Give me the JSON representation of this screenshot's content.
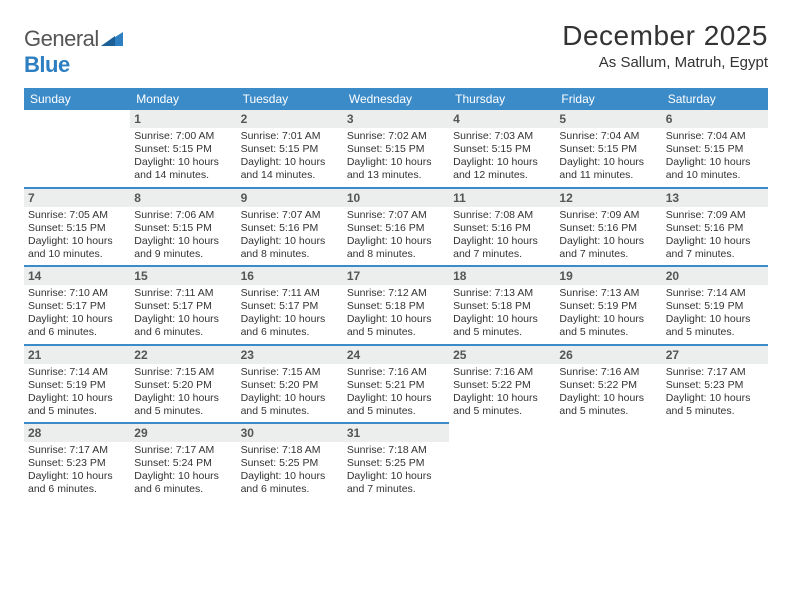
{
  "brand": {
    "part1": "General",
    "part2": "Blue"
  },
  "title": "December 2025",
  "location": "As Sallum, Matruh, Egypt",
  "colors": {
    "header_bg": "#3b8bc9",
    "header_text": "#ffffff",
    "daynum_bg": "#eceded",
    "rule": "#3b8bc9",
    "logo_gray": "#555555",
    "logo_blue": "#2d7fc1",
    "text": "#333333"
  },
  "weekdays": [
    "Sunday",
    "Monday",
    "Tuesday",
    "Wednesday",
    "Thursday",
    "Friday",
    "Saturday"
  ],
  "weeks": [
    [
      null,
      {
        "n": "1",
        "sr": "7:00 AM",
        "ss": "5:15 PM",
        "dl": "10 hours and 14 minutes."
      },
      {
        "n": "2",
        "sr": "7:01 AM",
        "ss": "5:15 PM",
        "dl": "10 hours and 14 minutes."
      },
      {
        "n": "3",
        "sr": "7:02 AM",
        "ss": "5:15 PM",
        "dl": "10 hours and 13 minutes."
      },
      {
        "n": "4",
        "sr": "7:03 AM",
        "ss": "5:15 PM",
        "dl": "10 hours and 12 minutes."
      },
      {
        "n": "5",
        "sr": "7:04 AM",
        "ss": "5:15 PM",
        "dl": "10 hours and 11 minutes."
      },
      {
        "n": "6",
        "sr": "7:04 AM",
        "ss": "5:15 PM",
        "dl": "10 hours and 10 minutes."
      }
    ],
    [
      {
        "n": "7",
        "sr": "7:05 AM",
        "ss": "5:15 PM",
        "dl": "10 hours and 10 minutes."
      },
      {
        "n": "8",
        "sr": "7:06 AM",
        "ss": "5:15 PM",
        "dl": "10 hours and 9 minutes."
      },
      {
        "n": "9",
        "sr": "7:07 AM",
        "ss": "5:16 PM",
        "dl": "10 hours and 8 minutes."
      },
      {
        "n": "10",
        "sr": "7:07 AM",
        "ss": "5:16 PM",
        "dl": "10 hours and 8 minutes."
      },
      {
        "n": "11",
        "sr": "7:08 AM",
        "ss": "5:16 PM",
        "dl": "10 hours and 7 minutes."
      },
      {
        "n": "12",
        "sr": "7:09 AM",
        "ss": "5:16 PM",
        "dl": "10 hours and 7 minutes."
      },
      {
        "n": "13",
        "sr": "7:09 AM",
        "ss": "5:16 PM",
        "dl": "10 hours and 7 minutes."
      }
    ],
    [
      {
        "n": "14",
        "sr": "7:10 AM",
        "ss": "5:17 PM",
        "dl": "10 hours and 6 minutes."
      },
      {
        "n": "15",
        "sr": "7:11 AM",
        "ss": "5:17 PM",
        "dl": "10 hours and 6 minutes."
      },
      {
        "n": "16",
        "sr": "7:11 AM",
        "ss": "5:17 PM",
        "dl": "10 hours and 6 minutes."
      },
      {
        "n": "17",
        "sr": "7:12 AM",
        "ss": "5:18 PM",
        "dl": "10 hours and 5 minutes."
      },
      {
        "n": "18",
        "sr": "7:13 AM",
        "ss": "5:18 PM",
        "dl": "10 hours and 5 minutes."
      },
      {
        "n": "19",
        "sr": "7:13 AM",
        "ss": "5:19 PM",
        "dl": "10 hours and 5 minutes."
      },
      {
        "n": "20",
        "sr": "7:14 AM",
        "ss": "5:19 PM",
        "dl": "10 hours and 5 minutes."
      }
    ],
    [
      {
        "n": "21",
        "sr": "7:14 AM",
        "ss": "5:19 PM",
        "dl": "10 hours and 5 minutes."
      },
      {
        "n": "22",
        "sr": "7:15 AM",
        "ss": "5:20 PM",
        "dl": "10 hours and 5 minutes."
      },
      {
        "n": "23",
        "sr": "7:15 AM",
        "ss": "5:20 PM",
        "dl": "10 hours and 5 minutes."
      },
      {
        "n": "24",
        "sr": "7:16 AM",
        "ss": "5:21 PM",
        "dl": "10 hours and 5 minutes."
      },
      {
        "n": "25",
        "sr": "7:16 AM",
        "ss": "5:22 PM",
        "dl": "10 hours and 5 minutes."
      },
      {
        "n": "26",
        "sr": "7:16 AM",
        "ss": "5:22 PM",
        "dl": "10 hours and 5 minutes."
      },
      {
        "n": "27",
        "sr": "7:17 AM",
        "ss": "5:23 PM",
        "dl": "10 hours and 5 minutes."
      }
    ],
    [
      {
        "n": "28",
        "sr": "7:17 AM",
        "ss": "5:23 PM",
        "dl": "10 hours and 6 minutes."
      },
      {
        "n": "29",
        "sr": "7:17 AM",
        "ss": "5:24 PM",
        "dl": "10 hours and 6 minutes."
      },
      {
        "n": "30",
        "sr": "7:18 AM",
        "ss": "5:25 PM",
        "dl": "10 hours and 6 minutes."
      },
      {
        "n": "31",
        "sr": "7:18 AM",
        "ss": "5:25 PM",
        "dl": "10 hours and 7 minutes."
      },
      null,
      null,
      null
    ]
  ],
  "labels": {
    "sunrise": "Sunrise:",
    "sunset": "Sunset:",
    "daylight": "Daylight:"
  }
}
